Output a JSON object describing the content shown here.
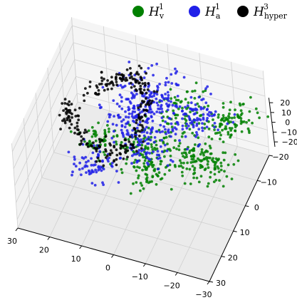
{
  "chart_data": {
    "type": "scatter",
    "projection": "3d",
    "title": "",
    "xlabel": "",
    "ylabel": "",
    "zlabel": "",
    "grid": true,
    "legend_position": "top-right",
    "xlim": [
      -30,
      30
    ],
    "ylim": [
      -20,
      30
    ],
    "zlim": [
      -25,
      25
    ],
    "x_ticks": [
      "30",
      "20",
      "10",
      "0",
      "−10",
      "−20",
      "−30"
    ],
    "y_ticks": [
      "−20",
      "−10",
      "0",
      "10",
      "20",
      "30"
    ],
    "z_ticks": [
      "20",
      "10",
      "0",
      "−10",
      "−20"
    ],
    "series": [
      {
        "name": "H_v^1",
        "legend_base": "H",
        "legend_sub": "v",
        "legend_sup": "1",
        "color": "#008000",
        "clusters": [
          {
            "x": -8,
            "y": -12,
            "z": 2,
            "spread": 4,
            "count": 70
          },
          {
            "x": -20,
            "y": -12,
            "z": 0,
            "spread": 3,
            "count": 50
          },
          {
            "x": 0,
            "y": 2,
            "z": -3,
            "spread": 4,
            "count": 110
          },
          {
            "x": 12,
            "y": 6,
            "z": 0,
            "spread": 3,
            "count": 60
          },
          {
            "x": -4,
            "y": 10,
            "z": -6,
            "spread": 3,
            "count": 55
          },
          {
            "x": -15,
            "y": 0,
            "z": -5,
            "spread": 4,
            "count": 90
          },
          {
            "x": -25,
            "y": -12,
            "z": 5,
            "spread": 3,
            "count": 40
          },
          {
            "x": -22,
            "y": 2,
            "z": -3,
            "spread": 3,
            "count": 50
          }
        ]
      },
      {
        "name": "H_a^1",
        "legend_base": "H",
        "legend_sub": "a",
        "legend_sup": "1",
        "color": "#2020e8",
        "clusters": [
          {
            "x": 2,
            "y": -8,
            "z": 8,
            "spread": 5,
            "count": 160
          },
          {
            "x": 3,
            "y": -2,
            "z": 3,
            "spread": 5,
            "count": 120
          },
          {
            "x": -12,
            "y": -10,
            "z": 4,
            "spread": 4,
            "count": 90
          },
          {
            "x": 12,
            "y": 12,
            "z": -5,
            "spread": 3,
            "count": 70
          },
          {
            "x": -3,
            "y": 5,
            "z": 0,
            "spread": 3,
            "count": 40
          }
        ]
      },
      {
        "name": "H_hyper^3",
        "legend_base": "H",
        "legend_sub": "hyper",
        "legend_sup": "3",
        "color": "#000000",
        "ring": {
          "cx": 14,
          "cy": -4,
          "cz": 2,
          "r": 11,
          "count": 260
        }
      }
    ]
  }
}
